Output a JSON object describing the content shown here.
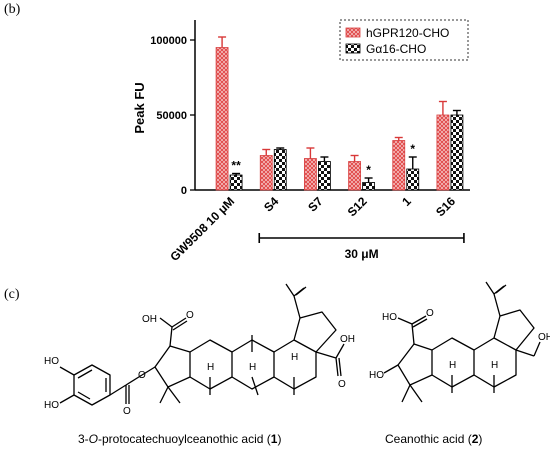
{
  "panel_b_label": "(b)",
  "panel_c_label": "(c)",
  "chart_data": {
    "type": "bar",
    "ylabel": "Peak FU",
    "ylim": [
      0,
      110000
    ],
    "yticks": [
      0,
      50000,
      100000
    ],
    "ytick_labels": [
      "0",
      "50000",
      "100000"
    ],
    "categories": [
      "GW9508 10 μM",
      "S4",
      "S7",
      "S12",
      "1",
      "S16"
    ],
    "series": [
      {
        "name": "hGPR120-CHO",
        "color": "#e05050",
        "values": [
          95000,
          23000,
          21000,
          19000,
          33000,
          50000
        ],
        "errors": [
          7000,
          4000,
          7000,
          4000,
          2000,
          9000
        ]
      },
      {
        "name": "Gα16-CHO",
        "color": "#111111",
        "values": [
          10000,
          27000,
          19000,
          5000,
          14000,
          50000
        ],
        "errors": [
          1000,
          1000,
          3000,
          3000,
          8000,
          3000
        ]
      }
    ],
    "significance": [
      {
        "category": "GW9508 10 μM",
        "label": "**"
      },
      {
        "category": "S12",
        "label": "*"
      },
      {
        "category": "1",
        "label": "*"
      }
    ],
    "bracket_label": "30 μM",
    "legend_position": "top-right"
  },
  "compounds": [
    {
      "caption_prefix": "3-",
      "caption_italic": "O",
      "caption_rest": "-protocatechuoylceanothic acid (",
      "number": "1",
      "caption_end": ")"
    },
    {
      "caption_prefix": "Ceanothic acid (",
      "number": "2",
      "caption_end": ")"
    }
  ],
  "atom_labels": {
    "OH": "OH",
    "O": "O",
    "HO": "HO",
    "H": "H"
  }
}
